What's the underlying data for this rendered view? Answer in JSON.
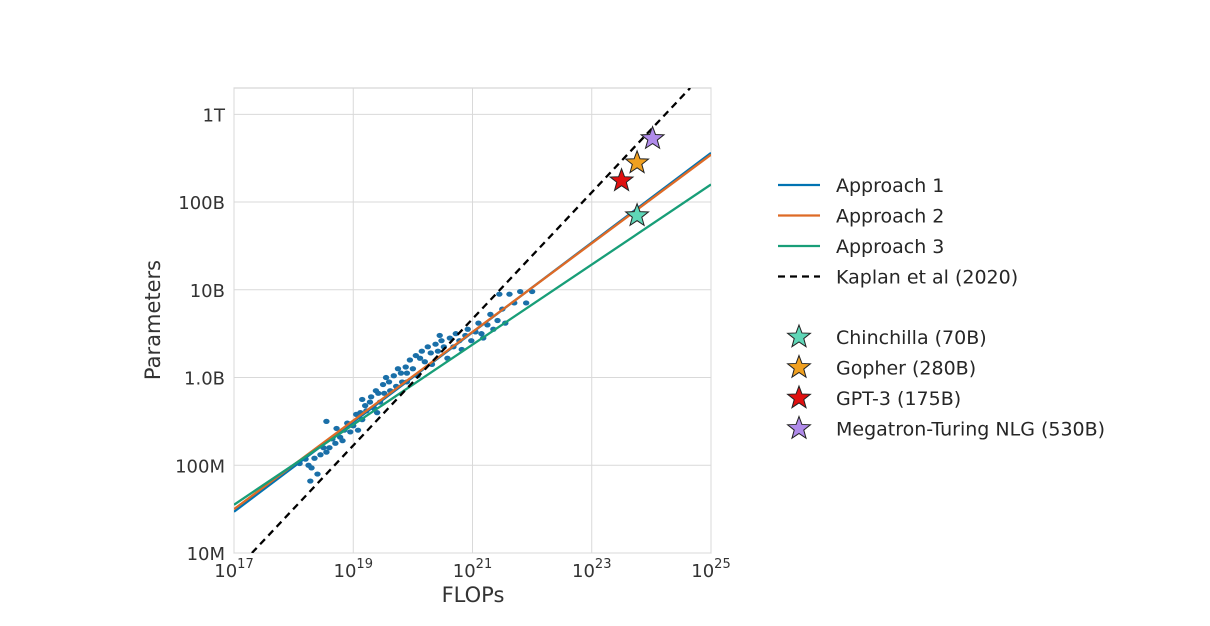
{
  "chart_data": {
    "type": "scatter",
    "xlabel": "FLOPs",
    "ylabel": "Parameters",
    "xscale": "log",
    "yscale": "log",
    "xlim_log10": [
      17,
      25
    ],
    "ylim_log10": [
      7,
      12.3
    ],
    "grid": true,
    "legend_position": "right",
    "x_ticks": [
      {
        "exp": 17,
        "base": "10",
        "sup": "17"
      },
      {
        "exp": 19,
        "base": "10",
        "sup": "19"
      },
      {
        "exp": 21,
        "base": "10",
        "sup": "21"
      },
      {
        "exp": 23,
        "base": "10",
        "sup": "23"
      },
      {
        "exp": 25,
        "base": "10",
        "sup": "25"
      }
    ],
    "y_ticks": [
      {
        "exp": 7,
        "label": "10M"
      },
      {
        "exp": 8,
        "label": "100M"
      },
      {
        "exp": 9,
        "label": "1.0B"
      },
      {
        "exp": 10,
        "label": "10B"
      },
      {
        "exp": 11,
        "label": "100B"
      },
      {
        "exp": 12,
        "label": "1T"
      }
    ],
    "fit_lines": [
      {
        "name": "Approach 1",
        "color": "#0173b2",
        "dashed": false,
        "x_log10": [
          17,
          25
        ],
        "y_log10": [
          7.47,
          11.56
        ]
      },
      {
        "name": "Approach 2",
        "color": "#de6a26",
        "dashed": false,
        "x_log10": [
          17,
          25
        ],
        "y_log10": [
          7.5,
          11.54
        ]
      },
      {
        "name": "Approach 3",
        "color": "#189e78",
        "dashed": false,
        "x_log10": [
          17,
          25
        ],
        "y_log10": [
          7.55,
          11.2
        ]
      },
      {
        "name": "Kaplan et al (2020)",
        "color": "#000000",
        "dashed": true,
        "x_log10": [
          17.3,
          24.65
        ],
        "y_log10": [
          7.0,
          12.3
        ]
      }
    ],
    "scatter_points_log10": [
      [
        18.1,
        8.02
      ],
      [
        18.2,
        8.07
      ],
      [
        18.25,
        8.0
      ],
      [
        18.3,
        7.97
      ],
      [
        18.35,
        8.08
      ],
      [
        18.4,
        7.9
      ],
      [
        18.45,
        8.12
      ],
      [
        18.5,
        8.2
      ],
      [
        18.55,
        8.15
      ],
      [
        18.6,
        8.2
      ],
      [
        18.65,
        8.3
      ],
      [
        18.7,
        8.25
      ],
      [
        18.72,
        8.42
      ],
      [
        18.78,
        8.32
      ],
      [
        18.82,
        8.28
      ],
      [
        18.85,
        8.4
      ],
      [
        18.9,
        8.48
      ],
      [
        18.95,
        8.38
      ],
      [
        19.0,
        8.45
      ],
      [
        19.05,
        8.58
      ],
      [
        19.08,
        8.4
      ],
      [
        19.12,
        8.6
      ],
      [
        19.15,
        8.52
      ],
      [
        19.2,
        8.68
      ],
      [
        19.22,
        8.62
      ],
      [
        19.28,
        8.72
      ],
      [
        19.3,
        8.78
      ],
      [
        19.35,
        8.65
      ],
      [
        19.38,
        8.85
      ],
      [
        19.42,
        8.82
      ],
      [
        19.45,
        8.72
      ],
      [
        19.5,
        8.92
      ],
      [
        19.52,
        8.82
      ],
      [
        19.55,
        9.0
      ],
      [
        19.6,
        8.95
      ],
      [
        19.62,
        8.85
      ],
      [
        19.68,
        9.02
      ],
      [
        19.72,
        8.9
      ],
      [
        19.75,
        9.1
      ],
      [
        19.8,
        9.05
      ],
      [
        19.82,
        8.95
      ],
      [
        19.88,
        9.12
      ],
      [
        19.9,
        9.05
      ],
      [
        19.95,
        9.2
      ],
      [
        20.0,
        9.1
      ],
      [
        20.05,
        9.25
      ],
      [
        20.08,
        9.02
      ],
      [
        20.12,
        9.22
      ],
      [
        20.15,
        9.3
      ],
      [
        20.2,
        9.18
      ],
      [
        20.25,
        9.35
      ],
      [
        20.3,
        9.28
      ],
      [
        20.32,
        9.15
      ],
      [
        20.38,
        9.38
      ],
      [
        20.42,
        9.3
      ],
      [
        20.48,
        9.42
      ],
      [
        20.52,
        9.35
      ],
      [
        20.58,
        9.22
      ],
      [
        20.62,
        9.45
      ],
      [
        20.68,
        9.35
      ],
      [
        20.72,
        9.5
      ],
      [
        20.78,
        9.42
      ],
      [
        20.82,
        9.32
      ],
      [
        20.88,
        9.48
      ],
      [
        20.92,
        9.55
      ],
      [
        20.98,
        9.42
      ],
      [
        21.05,
        9.52
      ],
      [
        21.1,
        9.62
      ],
      [
        21.18,
        9.45
      ],
      [
        21.25,
        9.6
      ],
      [
        21.3,
        9.72
      ],
      [
        21.35,
        9.55
      ],
      [
        21.42,
        9.65
      ],
      [
        21.5,
        9.78
      ],
      [
        21.55,
        9.62
      ],
      [
        21.62,
        9.95
      ],
      [
        21.7,
        9.85
      ],
      [
        21.8,
        9.98
      ],
      [
        21.9,
        9.85
      ],
      [
        22.0,
        9.98
      ],
      [
        19.15,
        8.75
      ],
      [
        18.55,
        8.5
      ],
      [
        19.4,
        8.6
      ],
      [
        20.45,
        9.48
      ],
      [
        21.45,
        9.95
      ],
      [
        18.28,
        7.82
      ],
      [
        21.15,
        9.5
      ],
      [
        19.9,
        8.95
      ]
    ],
    "markers": [
      {
        "name": "Chinchilla (70B)",
        "x_log10": 23.76,
        "y_log10": 10.845,
        "color": "#5fd6b7"
      },
      {
        "name": "Gopher (280B)",
        "x_log10": 23.76,
        "y_log10": 11.447,
        "color": "#f0a020"
      },
      {
        "name": "GPT-3 (175B)",
        "x_log10": 23.5,
        "y_log10": 11.243,
        "color": "#e01010"
      },
      {
        "name": "Megatron-Turing NLG (530B)",
        "x_log10": 24.02,
        "y_log10": 11.724,
        "color": "#b08bea"
      }
    ],
    "scatter_color": "#1a6fa8"
  },
  "legend": {
    "lines": [
      {
        "label": "Approach 1",
        "color": "#0173b2",
        "dashed": false
      },
      {
        "label": "Approach 2",
        "color": "#de6a26",
        "dashed": false
      },
      {
        "label": "Approach 3",
        "color": "#189e78",
        "dashed": false
      },
      {
        "label": "Kaplan et al (2020)",
        "color": "#000000",
        "dashed": true
      }
    ],
    "markers": [
      {
        "label": "Chinchilla (70B)",
        "color": "#5fd6b7"
      },
      {
        "label": "Gopher (280B)",
        "color": "#f0a020"
      },
      {
        "label": "GPT-3 (175B)",
        "color": "#e01010"
      },
      {
        "label": "Megatron-Turing NLG (530B)",
        "color": "#b08bea"
      }
    ]
  }
}
